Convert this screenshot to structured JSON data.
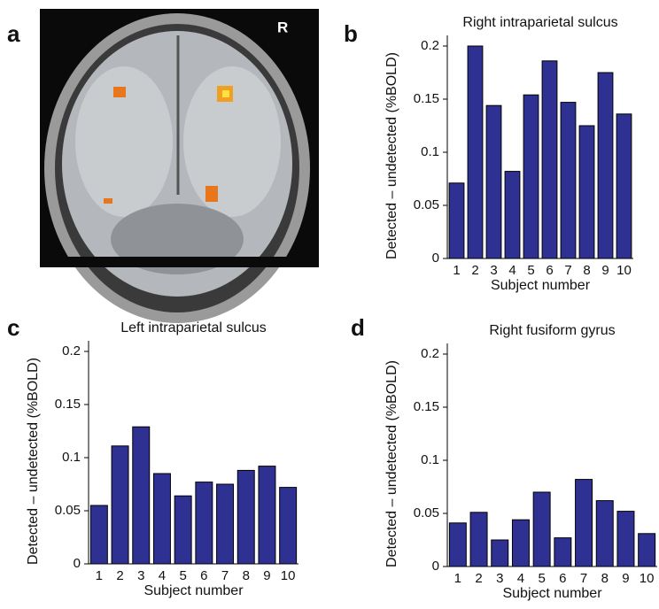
{
  "image_panel": {
    "panel": "a",
    "orientation_label": "R"
  },
  "chart_data": [
    {
      "type": "bar",
      "panel": "b",
      "title": "Right intraparietal sulcus",
      "xlabel": "Subject number",
      "ylabel": "Detected – undetected (%BOLD)",
      "categories": [
        "1",
        "2",
        "3",
        "4",
        "5",
        "6",
        "7",
        "8",
        "9",
        "10"
      ],
      "values": [
        0.071,
        0.2,
        0.144,
        0.082,
        0.154,
        0.186,
        0.147,
        0.125,
        0.175,
        0.136
      ],
      "color": "#2e3192",
      "ylim": [
        0,
        0.21
      ],
      "yticks": [
        0,
        0.05,
        0.1,
        0.15,
        0.2
      ]
    },
    {
      "type": "bar",
      "panel": "c",
      "title": "Left intraparietal sulcus",
      "xlabel": "Subject number",
      "ylabel": "Detected – undetected (%BOLD)",
      "categories": [
        "1",
        "2",
        "3",
        "4",
        "5",
        "6",
        "7",
        "8",
        "9",
        "10"
      ],
      "values": [
        0.055,
        0.111,
        0.129,
        0.085,
        0.064,
        0.077,
        0.075,
        0.088,
        0.092,
        0.072
      ],
      "color": "#2e3192",
      "ylim": [
        0,
        0.21
      ],
      "yticks": [
        0,
        0.05,
        0.1,
        0.15,
        0.2
      ]
    },
    {
      "type": "bar",
      "panel": "d",
      "title": "Right fusiform gyrus",
      "xlabel": "Subject number",
      "ylabel": "Detected – undetected (%BOLD)",
      "categories": [
        "1",
        "2",
        "3",
        "4",
        "5",
        "6",
        "7",
        "8",
        "9",
        "10"
      ],
      "values": [
        0.041,
        0.051,
        0.025,
        0.044,
        0.07,
        0.027,
        0.082,
        0.062,
        0.052,
        0.031
      ],
      "color": "#2e3192",
      "ylim": [
        0,
        0.21
      ],
      "yticks": [
        0,
        0.05,
        0.1,
        0.15,
        0.2
      ]
    }
  ]
}
